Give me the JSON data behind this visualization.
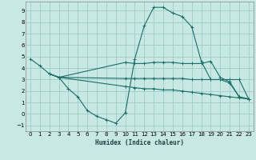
{
  "xlabel": "Humidex (Indice chaleur)",
  "ylabel": "",
  "background_color": "#c8e8e4",
  "grid_color": "#a0cccc",
  "line_color": "#1a6e65",
  "xlim": [
    -0.5,
    23.5
  ],
  "ylim": [
    -1.5,
    9.8
  ],
  "xticks": [
    0,
    1,
    2,
    3,
    4,
    5,
    6,
    7,
    8,
    9,
    10,
    11,
    12,
    13,
    14,
    15,
    16,
    17,
    18,
    19,
    20,
    21,
    22,
    23
  ],
  "yticks": [
    -1,
    0,
    1,
    2,
    3,
    4,
    5,
    6,
    7,
    8,
    9
  ],
  "lines": [
    {
      "x": [
        0,
        1,
        2,
        3,
        4,
        5,
        6,
        7,
        8,
        9,
        10,
        11,
        12,
        13,
        14,
        15,
        16,
        17,
        18,
        19,
        20,
        21,
        22,
        23
      ],
      "y": [
        4.8,
        4.2,
        3.5,
        3.2,
        2.2,
        1.5,
        0.3,
        -0.2,
        -0.5,
        -0.8,
        0.1,
        4.8,
        7.7,
        9.3,
        9.3,
        8.8,
        8.5,
        7.6,
        4.6,
        3.0,
        3.0,
        2.7,
        1.5,
        1.3
      ]
    },
    {
      "x": [
        2,
        3,
        10,
        11,
        12,
        13,
        14,
        15,
        16,
        17,
        18,
        19,
        20,
        21,
        22,
        23
      ],
      "y": [
        3.5,
        3.2,
        4.5,
        4.4,
        4.4,
        4.5,
        4.5,
        4.5,
        4.4,
        4.4,
        4.4,
        4.6,
        3.2,
        2.8,
        1.5,
        1.3
      ]
    },
    {
      "x": [
        2,
        3,
        10,
        11,
        12,
        13,
        14,
        15,
        16,
        17,
        18,
        19,
        20,
        21,
        22,
        23
      ],
      "y": [
        3.5,
        3.2,
        3.1,
        3.1,
        3.1,
        3.1,
        3.1,
        3.1,
        3.1,
        3.0,
        3.0,
        3.0,
        3.0,
        3.0,
        3.0,
        1.3
      ]
    },
    {
      "x": [
        2,
        3,
        10,
        11,
        12,
        13,
        14,
        15,
        16,
        17,
        18,
        19,
        20,
        21,
        22,
        23
      ],
      "y": [
        3.5,
        3.2,
        2.4,
        2.3,
        2.2,
        2.2,
        2.1,
        2.1,
        2.0,
        1.9,
        1.8,
        1.7,
        1.6,
        1.5,
        1.4,
        1.3
      ]
    }
  ]
}
